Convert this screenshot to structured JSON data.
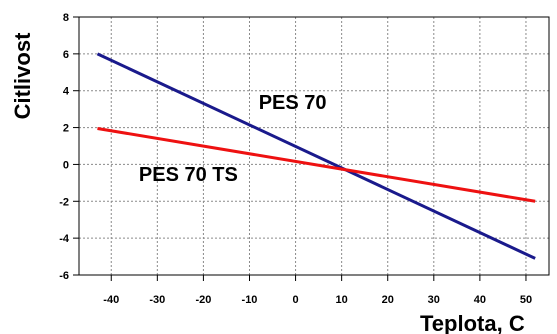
{
  "chart_data": {
    "type": "line",
    "title": "",
    "xlabel": "Teplota, C",
    "ylabel": "Citlivost",
    "xlim": [
      -47,
      55
    ],
    "ylim": [
      -6,
      8
    ],
    "xticks": [
      -40,
      -30,
      -20,
      -10,
      0,
      10,
      20,
      30,
      40,
      50
    ],
    "yticks": [
      8,
      6,
      4,
      2,
      0,
      -2,
      -4,
      -6
    ],
    "grid": true,
    "legend": "none",
    "series": [
      {
        "name": "PES 70",
        "color": "#1a1a8c",
        "x": [
          -43,
          52
        ],
        "y": [
          6,
          -5.1
        ]
      },
      {
        "name": "PES 70 TS",
        "color": "#ee1111",
        "x": [
          -43,
          52
        ],
        "y": [
          1.95,
          -2
        ]
      }
    ],
    "annotations": [
      {
        "text": "PES 70",
        "x": -8,
        "y": 3,
        "series": 0
      },
      {
        "text": "PES 70 TS",
        "x": -34,
        "y": -0.9,
        "series": 1
      }
    ]
  }
}
